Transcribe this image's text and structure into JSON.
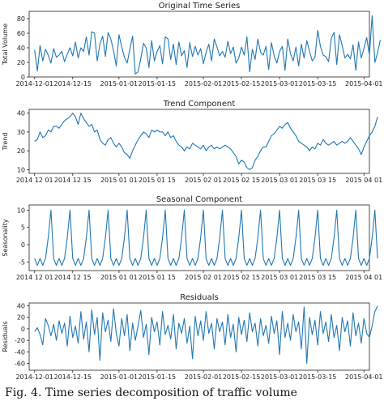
{
  "caption": "Fig. 4. Time series decomposition of traffic volume",
  "series_color": "#1f77b4",
  "chart_data": [
    {
      "type": "line",
      "title": "Original Time Series",
      "xlabel": "",
      "ylabel": "Total Volume",
      "xlim": [
        "2014-11-29",
        "2015-04-03"
      ],
      "ylim": [
        0,
        90
      ],
      "yticks": [
        0,
        20,
        40,
        60,
        80
      ],
      "xticks": [
        "2014-12-01",
        "2014-12-15",
        "2015-01-01",
        "2015-01-15",
        "2015-02-01",
        "2015-02-15",
        "2015-03-01",
        "2015-03-15",
        "2015-04-01"
      ],
      "start_date": "2014-12-01",
      "values": [
        37,
        8,
        43,
        22,
        38,
        30,
        19,
        39,
        27,
        30,
        35,
        21,
        31,
        40,
        29,
        48,
        26,
        40,
        35,
        55,
        30,
        62,
        60,
        22,
        45,
        56,
        28,
        61,
        52,
        36,
        15,
        58,
        41,
        27,
        19,
        38,
        56,
        4,
        7,
        25,
        46,
        40,
        13,
        50,
        22,
        35,
        43,
        18,
        55,
        52,
        24,
        45,
        17,
        48,
        29,
        36,
        13,
        47,
        28,
        42,
        30,
        39,
        18,
        34,
        45,
        22,
        52,
        41,
        29,
        35,
        27,
        49,
        32,
        41,
        19,
        26,
        41,
        30,
        55,
        7,
        38,
        24,
        52,
        34,
        30,
        42,
        10,
        47,
        29,
        19,
        35,
        42,
        9,
        52,
        32,
        22,
        41,
        15,
        45,
        26,
        50,
        35,
        22,
        27,
        64,
        42,
        30,
        28,
        21,
        53,
        61,
        17,
        58,
        43,
        26,
        31,
        25,
        44,
        9,
        48,
        26,
        39,
        54,
        30,
        84,
        20,
        33,
        51
      ]
    },
    {
      "type": "line",
      "title": "Trend Component",
      "xlabel": "",
      "ylabel": "Trend",
      "xlim": [
        "2014-11-29",
        "2015-04-03"
      ],
      "ylim": [
        8,
        42
      ],
      "yticks": [
        10,
        20,
        30,
        40
      ],
      "xticks": [
        "2014 12 01",
        "2014 12 15",
        "2015 01 01",
        "2015 01 15",
        "2015 02 01",
        "2015 02 15",
        "2015 03 01",
        "2015 03 15",
        "2015 04 01"
      ],
      "start_date": "2014-12-01",
      "values": [
        25,
        26,
        30,
        27,
        28,
        31,
        30,
        33,
        33,
        32,
        34,
        36,
        37,
        38,
        40,
        38,
        34,
        40,
        37,
        35,
        33,
        34,
        30,
        31,
        26,
        24,
        23,
        26,
        27,
        24,
        22,
        24,
        22,
        19,
        18,
        16,
        20,
        23,
        26,
        28,
        30,
        29,
        27,
        31,
        30,
        31,
        30,
        30,
        28,
        30,
        27,
        28,
        25,
        23,
        22,
        20,
        22,
        21,
        24,
        23,
        22,
        21,
        23,
        20,
        22,
        23,
        21,
        22,
        21,
        22,
        23,
        22,
        21,
        19,
        17,
        13,
        15,
        14,
        11,
        10,
        11,
        15,
        17,
        20,
        22,
        22,
        25,
        28,
        29,
        31,
        33,
        32,
        34,
        35,
        32,
        30,
        28,
        25,
        24,
        23,
        22,
        20,
        22,
        21,
        24,
        23,
        26,
        24,
        23,
        24,
        25,
        23,
        24,
        25,
        24,
        25,
        27,
        25,
        23,
        21,
        18,
        22,
        25,
        28,
        30,
        33,
        38
      ]
    },
    {
      "type": "line",
      "title": "Seasonal Component",
      "xlabel": "",
      "ylabel": "Seasonality",
      "xlim": [
        "2014-11-29",
        "2015-04-03"
      ],
      "ylim": [
        -7.5,
        11.5
      ],
      "yticks": [
        -5,
        0,
        5,
        10
      ],
      "xticks": [
        "2014 12 01",
        "2014 12 15",
        "2015 01 01",
        "2015 01 15",
        "2015 02 01",
        "2015 02 15",
        "2015 03 01",
        "2015 03 15",
        "2015 04 01"
      ],
      "start_date": "2014-12-01",
      "values": [
        -4,
        -6,
        -4,
        -6,
        -4,
        2,
        10,
        -4,
        -6,
        -4,
        -6,
        -4,
        2,
        10,
        -4,
        -6,
        -4,
        -6,
        -4,
        2,
        10,
        -4,
        -6,
        -4,
        -6,
        -4,
        2,
        10,
        -4,
        -6,
        -4,
        -6,
        -4,
        2,
        10,
        -4,
        -6,
        -4,
        -6,
        -4,
        2,
        10,
        -4,
        -6,
        -4,
        -6,
        -4,
        2,
        10,
        -4,
        -6,
        -4,
        -6,
        -4,
        2,
        10,
        -4,
        -6,
        -4,
        -6,
        -4,
        2,
        10,
        -4,
        -6,
        -4,
        -6,
        -4,
        2,
        10,
        -4,
        -6,
        -4,
        -6,
        -4,
        2,
        10,
        -4,
        -6,
        -4,
        -6,
        -4,
        2,
        10,
        -4,
        -6,
        -4,
        -6,
        -4,
        2,
        10,
        -4,
        -6,
        -4,
        -6,
        -4,
        2,
        10,
        -4,
        -6,
        -4,
        -6,
        -4,
        2,
        10,
        -4,
        -6,
        -4,
        -6,
        -4,
        2,
        10,
        -4,
        -6,
        -4,
        -6,
        -4,
        2,
        10,
        -4,
        -6,
        -4,
        -6,
        -4,
        2,
        10,
        -4
      ]
    },
    {
      "type": "line",
      "title": "Residuals",
      "xlabel": "",
      "ylabel": "Residuals",
      "xlim": [
        "2014-11-29",
        "2015-04-03"
      ],
      "ylim": [
        -72,
        45
      ],
      "yticks": [
        -60,
        -40,
        -20,
        0,
        20,
        40
      ],
      "xticks": [
        "2014-12-01",
        "2014-12-15",
        "2015-01-01",
        "2015-01-15",
        "2015-02-01",
        "2015-02-15",
        "2015-03-01",
        "2015-03-15",
        "2015-04-01"
      ],
      "start_date": "2014-12-01",
      "values": [
        -5,
        2,
        -10,
        -28,
        18,
        6,
        -12,
        8,
        -20,
        14,
        -8,
        10,
        -30,
        22,
        -15,
        5,
        -25,
        30,
        -18,
        12,
        -40,
        33,
        -10,
        20,
        -55,
        28,
        -5,
        15,
        -22,
        35,
        -8,
        -30,
        18,
        -12,
        25,
        -38,
        10,
        -20,
        5,
        32,
        -15,
        8,
        -45,
        20,
        -5,
        12,
        -28,
        30,
        -10,
        6,
        -18,
        25,
        -35,
        10,
        -8,
        18,
        -25,
        5,
        -52,
        22,
        -12,
        14,
        -20,
        30,
        -8,
        10,
        -35,
        18,
        -5,
        12,
        -28,
        25,
        -15,
        8,
        -40,
        20,
        -10,
        15,
        -22,
        28,
        -5,
        10,
        -30,
        18,
        -12,
        6,
        -25,
        22,
        -8,
        14,
        -45,
        30,
        -15,
        10,
        -20,
        25,
        -5,
        12,
        -35,
        38,
        -60,
        20,
        -10,
        15,
        -28,
        30,
        -8,
        12,
        -22,
        25,
        -15,
        6,
        -38,
        20,
        -5,
        14,
        -30,
        28,
        -12,
        10,
        -25,
        18,
        -8,
        -15,
        5,
        30,
        40
      ]
    }
  ]
}
